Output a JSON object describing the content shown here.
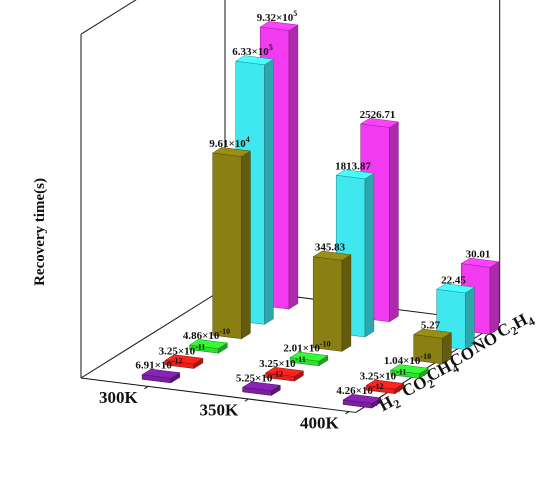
{
  "chart_data": {
    "type": "bar",
    "subtype": "3d-bar",
    "title": "",
    "ylabel": "Recovery time(s)",
    "x_categories": [
      "300K",
      "350K",
      "400K"
    ],
    "depth_categories": [
      {
        "key": "h2",
        "base": "H",
        "sub": "2"
      },
      {
        "key": "co2",
        "base": "CO",
        "sub": "2"
      },
      {
        "key": "ch4",
        "base": "CH",
        "sub": "4"
      },
      {
        "key": "co",
        "base": "CO",
        "sub": ""
      },
      {
        "key": "no",
        "base": "NO",
        "sub": ""
      },
      {
        "key": "c2h4",
        "base": "C",
        "sub": "2",
        "base2": "H",
        "sub2": "4"
      }
    ],
    "series": [
      {
        "gas": "H2",
        "color": "#7B1FA2",
        "values": [
          6.91e-12,
          5.25e-12,
          4.26e-12
        ],
        "labels": [
          {
            "m": "6.91×10",
            "e": "-12"
          },
          {
            "m": "5.25×10",
            "e": "-12"
          },
          {
            "m": "4.26×10",
            "e": "-12"
          }
        ]
      },
      {
        "gas": "CO2",
        "color": "#E8201C",
        "values": [
          3.25e-11,
          3.25e-11,
          3.25e-11
        ],
        "labels": [
          {
            "m": "3.25×10",
            "e": "-11"
          },
          {
            "m": "3.25×10",
            "e": "-11"
          },
          {
            "m": "3.25×10",
            "e": "-11"
          }
        ]
      },
      {
        "gas": "CH4",
        "color": "#2EE02E",
        "values": [
          4.86e-10,
          2.01e-10,
          1.04e-10
        ],
        "labels": [
          {
            "m": "4.86×10",
            "e": "-10"
          },
          {
            "m": "2.01×10",
            "e": "-10"
          },
          {
            "m": "1.04×10",
            "e": "-10"
          }
        ]
      },
      {
        "gas": "CO",
        "color": "#8A7F12",
        "values": [
          96100,
          345.83,
          5.27
        ],
        "labels": [
          {
            "m": "9.61×10",
            "e": "4"
          },
          {
            "m": "345.83",
            "e": ""
          },
          {
            "m": "5.27",
            "e": ""
          }
        ]
      },
      {
        "gas": "NO",
        "color": "#3FE8EE",
        "values": [
          633000,
          1813.87,
          22.45
        ],
        "labels": [
          {
            "m": "6.33×10",
            "e": "5"
          },
          {
            "m": "1813.87",
            "e": ""
          },
          {
            "m": "22.45",
            "e": ""
          }
        ]
      },
      {
        "gas": "C2H4",
        "color": "#F23BF0",
        "values": [
          932000,
          2526.71,
          30.01
        ],
        "labels": [
          {
            "m": "9.32×10",
            "e": "5"
          },
          {
            "m": "2526.71",
            "e": ""
          },
          {
            "m": "30.01",
            "e": ""
          }
        ]
      }
    ],
    "bar_levels": [
      [
        0.012,
        0.012,
        0.012
      ],
      [
        0.012,
        0.012,
        0.012
      ],
      [
        0.012,
        0.012,
        0.012
      ],
      [
        0.53,
        0.265,
        0.075
      ],
      [
        0.755,
        0.46,
        0.165
      ],
      [
        0.81,
        0.565,
        0.195
      ]
    ],
    "legend": "none",
    "grid": false
  }
}
